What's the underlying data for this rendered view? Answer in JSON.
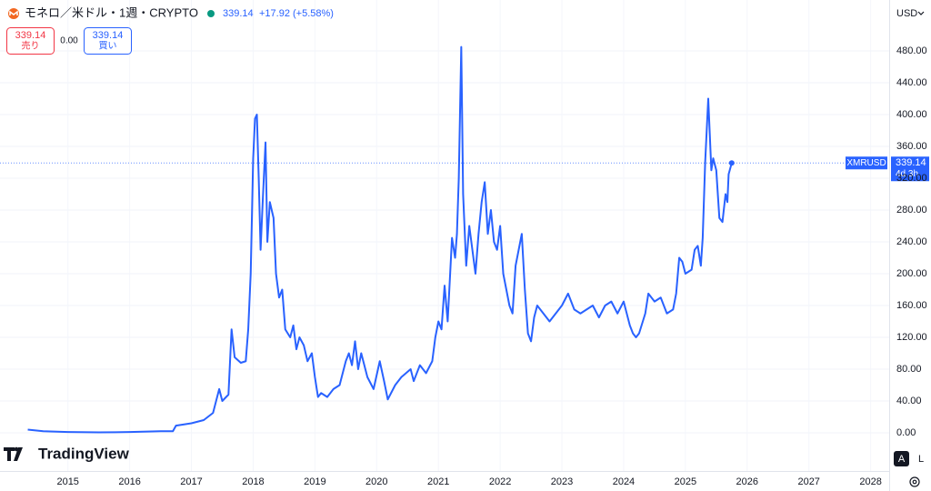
{
  "header": {
    "symbol": "モネロ／米ドル・1週・CRYPTO",
    "price": "339.14",
    "change": "+17.92",
    "change_pct": "(+5.58%)"
  },
  "trade": {
    "sell_price": "339.14",
    "sell_label": "売り",
    "spread": "0.00",
    "buy_price": "339.14",
    "buy_label": "買い"
  },
  "currency": "USD",
  "price_tag": {
    "symbol": "XMRUSD",
    "price": "339.14",
    "countdown": "4d 3h"
  },
  "brand": "TradingView",
  "buttons": {
    "auto": "A",
    "log": "L"
  },
  "chart_data": {
    "type": "line",
    "color": "#2962ff",
    "grid": true,
    "x": [
      2014.35,
      2014.6,
      2015.0,
      2015.5,
      2016.0,
      2016.5,
      2016.7,
      2016.75,
      2017.0,
      2017.2,
      2017.35,
      2017.45,
      2017.5,
      2017.6,
      2017.65,
      2017.7,
      2017.8,
      2017.88,
      2017.92,
      2017.96,
      2018.0,
      2018.03,
      2018.06,
      2018.09,
      2018.12,
      2018.16,
      2018.2,
      2018.23,
      2018.27,
      2018.33,
      2018.37,
      2018.42,
      2018.47,
      2018.52,
      2018.6,
      2018.65,
      2018.7,
      2018.75,
      2018.82,
      2018.88,
      2018.95,
      2019.0,
      2019.05,
      2019.1,
      2019.2,
      2019.3,
      2019.4,
      2019.5,
      2019.55,
      2019.6,
      2019.65,
      2019.7,
      2019.75,
      2019.85,
      2019.95,
      2020.05,
      2020.12,
      2020.18,
      2020.3,
      2020.4,
      2020.55,
      2020.6,
      2020.7,
      2020.8,
      2020.9,
      2020.95,
      2021.0,
      2021.05,
      2021.1,
      2021.15,
      2021.22,
      2021.27,
      2021.3,
      2021.33,
      2021.37,
      2021.4,
      2021.45,
      2021.5,
      2021.55,
      2021.6,
      2021.65,
      2021.7,
      2021.75,
      2021.8,
      2021.85,
      2021.9,
      2021.95,
      2022.0,
      2022.05,
      2022.1,
      2022.15,
      2022.2,
      2022.25,
      2022.3,
      2022.35,
      2022.4,
      2022.45,
      2022.5,
      2022.55,
      2022.6,
      2022.7,
      2022.8,
      2022.9,
      2023.0,
      2023.1,
      2023.2,
      2023.3,
      2023.4,
      2023.5,
      2023.6,
      2023.7,
      2023.8,
      2023.9,
      2024.0,
      2024.05,
      2024.1,
      2024.15,
      2024.2,
      2024.25,
      2024.35,
      2024.4,
      2024.5,
      2024.6,
      2024.7,
      2024.8,
      2024.85,
      2024.9,
      2024.95,
      2025.0,
      2025.1,
      2025.15,
      2025.2,
      2025.25,
      2025.28,
      2025.32,
      2025.37,
      2025.42,
      2025.45,
      2025.5,
      2025.55,
      2025.6,
      2025.65,
      2025.68,
      2025.7,
      2025.75
    ],
    "values": [
      4,
      2,
      1,
      0.5,
      1,
      2,
      2,
      9,
      12,
      16,
      25,
      55,
      40,
      48,
      130,
      95,
      88,
      90,
      130,
      200,
      345,
      395,
      400,
      320,
      230,
      300,
      365,
      240,
      290,
      270,
      200,
      170,
      180,
      130,
      120,
      135,
      105,
      120,
      110,
      90,
      100,
      70,
      45,
      50,
      45,
      55,
      60,
      90,
      100,
      85,
      115,
      80,
      100,
      70,
      55,
      90,
      65,
      42,
      60,
      70,
      80,
      65,
      85,
      75,
      90,
      120,
      140,
      130,
      185,
      140,
      245,
      220,
      250,
      320,
      485,
      300,
      210,
      260,
      230,
      200,
      250,
      290,
      315,
      250,
      280,
      240,
      230,
      260,
      200,
      180,
      160,
      150,
      210,
      230,
      250,
      180,
      125,
      115,
      145,
      160,
      150,
      140,
      150,
      160,
      175,
      155,
      150,
      155,
      160,
      145,
      160,
      165,
      150,
      165,
      150,
      135,
      125,
      120,
      125,
      150,
      175,
      165,
      170,
      150,
      155,
      175,
      220,
      215,
      200,
      205,
      230,
      235,
      210,
      245,
      340,
      420,
      330,
      345,
      330,
      270,
      265,
      300,
      290,
      325,
      339.14
    ],
    "xlim": [
      2013.9,
      2028.3
    ],
    "xticks": [
      2015,
      2016,
      2017,
      2018,
      2019,
      2020,
      2021,
      2022,
      2023,
      2024,
      2025,
      2026,
      2027,
      2028
    ],
    "ylim": [
      -48,
      544
    ],
    "yticks": [
      {
        "value": 0,
        "label": "0.00"
      },
      {
        "value": 40,
        "label": "40.00"
      },
      {
        "value": 80,
        "label": "80.00"
      },
      {
        "value": 120,
        "label": "120.00"
      },
      {
        "value": 160,
        "label": "160.00"
      },
      {
        "value": 200,
        "label": "200.00"
      },
      {
        "value": 240,
        "label": "240.00"
      },
      {
        "value": 280,
        "label": "280.00"
      },
      {
        "value": 320,
        "label": "320.00"
      },
      {
        "value": 360,
        "label": "360.00"
      },
      {
        "value": 400,
        "label": "400.00"
      },
      {
        "value": 440,
        "label": "440.00"
      },
      {
        "value": 480,
        "label": "480.00"
      }
    ]
  }
}
